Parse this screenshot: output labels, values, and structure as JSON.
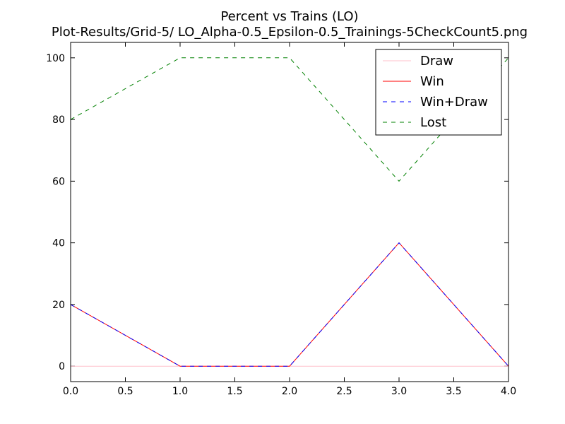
{
  "chart_data": {
    "type": "line",
    "title_line1": "Percent vs Trains (LO)",
    "title_line2": "Plot-Results/Grid-5/ LO_Alpha-0.5_Epsilon-0.5_Trainings-5CheckCount5.png",
    "xlabel": "",
    "ylabel": "",
    "x": [
      0,
      1,
      2,
      3,
      4
    ],
    "xlim": [
      0,
      4
    ],
    "ylim": [
      -5,
      105
    ],
    "x_ticks": [
      0,
      0.5,
      1,
      1.5,
      2,
      2.5,
      3,
      3.5,
      4
    ],
    "x_tick_labels": [
      "0.0",
      "0.5",
      "1.0",
      "1.5",
      "2.0",
      "2.5",
      "3.0",
      "3.5",
      "4.0"
    ],
    "y_ticks": [
      0,
      20,
      40,
      60,
      80,
      100
    ],
    "y_tick_labels": [
      "0",
      "20",
      "40",
      "60",
      "80",
      "100"
    ],
    "grid": false,
    "legend_position": "top-right",
    "series": [
      {
        "name": "Draw",
        "values": [
          0,
          0,
          0,
          0,
          0
        ],
        "color": "#ffc0cb",
        "style": "solid"
      },
      {
        "name": "Win",
        "values": [
          20,
          0,
          0,
          40,
          0
        ],
        "color": "#ff0000",
        "style": "solid"
      },
      {
        "name": "Win+Draw",
        "values": [
          20,
          0,
          0,
          40,
          0
        ],
        "color": "#0000ff",
        "style": "dashed"
      },
      {
        "name": "Lost",
        "values": [
          80,
          100,
          100,
          60,
          100
        ],
        "color": "#008000",
        "style": "dashed"
      }
    ]
  }
}
